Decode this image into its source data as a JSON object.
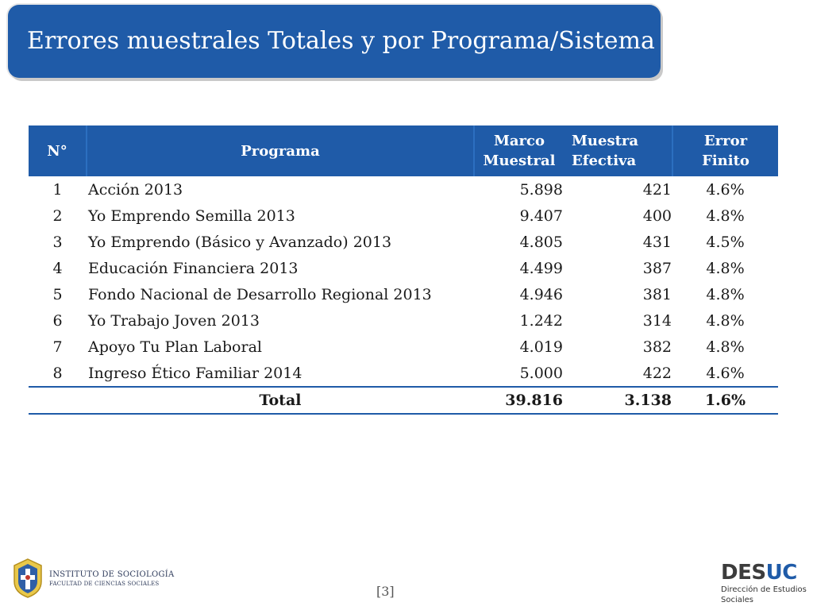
{
  "title": "Errores muestrales Totales y por Programa/Sistema",
  "table": {
    "headers": {
      "num": "N°",
      "programa": "Programa",
      "marco_1": "Marco",
      "marco_2": "Muestral",
      "muestra_1": "Muestra",
      "muestra_2": "Efectiva",
      "error_1": "Error",
      "error_2": "Finito"
    },
    "rows": [
      {
        "n": "1",
        "programa": "Acción 2013",
        "marco": "5.898",
        "muestra": "421",
        "error": "4.6%"
      },
      {
        "n": "2",
        "programa": "Yo Emprendo Semilla 2013",
        "marco": "9.407",
        "muestra": "400",
        "error": "4.8%"
      },
      {
        "n": "3",
        "programa": "Yo Emprendo (Básico y Avanzado) 2013",
        "marco": "4.805",
        "muestra": "431",
        "error": "4.5%"
      },
      {
        "n": "4",
        "programa": "Educación Financiera 2013",
        "marco": "4.499",
        "muestra": "387",
        "error": "4.8%"
      },
      {
        "n": "5",
        "programa": "Fondo Nacional de Desarrollo Regional 2013",
        "marco": "4.946",
        "muestra": "381",
        "error": "4.8%"
      },
      {
        "n": "6",
        "programa": "Yo Trabajo Joven 2013",
        "marco": "1.242",
        "muestra": "314",
        "error": "4.8%"
      },
      {
        "n": "7",
        "programa": "Apoyo Tu Plan Laboral",
        "marco": "4.019",
        "muestra": "382",
        "error": "4.8%"
      },
      {
        "n": "8",
        "programa": "Ingreso Ético Familiar 2014",
        "marco": "5.000",
        "muestra": "422",
        "error": "4.6%"
      }
    ],
    "total": {
      "label": "Total",
      "marco": "39.816",
      "muestra": "3.138",
      "error": "1.6%"
    }
  },
  "footer": {
    "institute_line1": "INSTITUTO DE SOCIOLOGÍA",
    "institute_line2": "FACULTAD DE CIENCIAS SOCIALES",
    "page_number": "[3]",
    "desuc_part1": "DES",
    "desuc_part2": "UC",
    "desuc_sub1": "Dirección de Estudios",
    "desuc_sub2": "Sociales"
  },
  "colors": {
    "accent": "#1f5ba8"
  }
}
